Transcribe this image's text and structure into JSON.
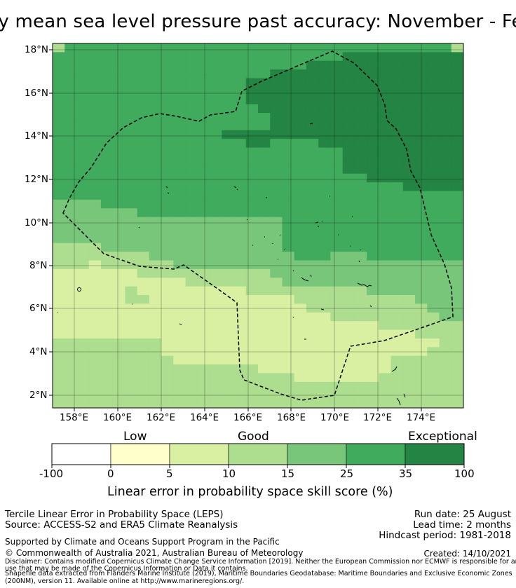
{
  "title": "ly mean sea level pressure past accuracy: November - Feb",
  "map": {
    "lat_ticks": [
      "18°N",
      "16°N",
      "14°N",
      "12°N",
      "10°N",
      "8°N",
      "6°N",
      "4°N",
      "2°N"
    ],
    "lon_ticks": [
      "158°E",
      "160°E",
      "162°E",
      "164°E",
      "166°E",
      "168°E",
      "170°E",
      "172°E",
      "174°E"
    ],
    "colors": [
      "#ffffff",
      "#ffffcc",
      "#d9f0a3",
      "#addd8e",
      "#78c679",
      "#41ab5d",
      "#238443"
    ],
    "grid_rows": [
      "3555555555555555555555555555555553",
      "5555555555555555555555556666666666",
      "5555555555555555555556666666666666",
      "5555555555555555556666666666666666",
      "5555555555555555666666666666666666",
      "5555555555555555666666666666666666",
      "5555555555555555666666666666666666",
      "5555555555555555566666666666666666",
      "5555555555555555556666666666666666",
      "5555555555555555556666666666666666",
      "5555555555555566666666666666666666",
      "5555555555555555665555666666666666",
      "5555555555555555555555556666666666",
      "5555555555555555555555556666666666",
      "5555555555555555555555556666666666",
      "5555555555555555555555555566666666",
      "5555555555555555555555555555566666",
      "5555555555555555555555555555555555",
      "4444555555555555555555555555555555",
      "4444444555555555555555555555555555",
      "4444444444444444444555555555555555",
      "4444444444444444444555555555555555",
      "4444444444444444444555555555555555",
      "3333444444444444444555555555555555",
      "3333333344444444444455544455555555",
      "3332333333444444444444444444444444",
      "2222222333333333334444444444444444",
      "2222222222233333333444444444444444",
      "2222223222222222333333333344444444",
      "2222223322222222222233333333334444",
      "2222222222222222222223333333333444",
      "2222222222222222222222233333333344",
      "2222222222222222222222222223333333",
      "2222222222222222222222222222223333",
      "3333333332222222222222222222222233",
      "3333333332222222222222222222222333",
      "3333333333222222222222222222333333",
      "3333333333333333322222222222333333",
      "3333333333333333333322222223333333",
      "3333333333333333333333333333333333",
      "3333333333333333333333333333333333",
      "3333333333333333333333333333333333"
    ]
  },
  "legend": {
    "group_labels": [
      "Low",
      "Good",
      "Exceptional"
    ],
    "ticks": [
      "-100",
      "0",
      "5",
      "10",
      "15",
      "25",
      "35",
      "100"
    ],
    "axis_label": "Linear error in probability space skill score (%)"
  },
  "footer": {
    "method": "Tercile Linear Error in Probability Space (LEPS)",
    "source": "Source: ACCESS-S2 and ERA5 Climate Reanalysis",
    "run_date": "Run date: 25 August",
    "lead_time": "Lead time: 2 months",
    "hindcast": "Hindcast period: 1981-2018",
    "support": "Supported by Climate and Oceans Support Program in the Pacific",
    "copyright": "© Commonwealth of Australia 2021, Australian Bureau of Meteorology",
    "created": "Created: 14/10/2021",
    "disclaimer1": "Disclaimer: Contains modified Copernicus Climate Change Service Information [2019]. Neither the European Commission nor ECMWF is responsible for any",
    "disclaimer2": "use that may be made of the Copernicus Information or Data it contains.",
    "shapefile1": "Shapefile data extracted from Flanders Marine Institute (2019), Maritime Boundaries Geodatabase: Maritime Boundaries and Exclusive Economic Zones",
    "shapefile2": "(200NM), version 11. Available online at http://www.marineregions.org/."
  }
}
